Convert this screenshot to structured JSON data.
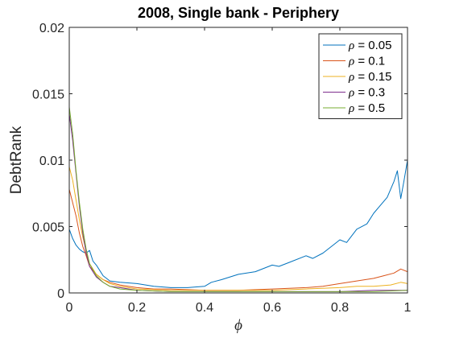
{
  "chart_data": {
    "type": "line",
    "title": "2008, Single bank - Periphery",
    "xlabel": "ϕ",
    "ylabel": "DebtRank",
    "xlim": [
      0,
      1
    ],
    "ylim": [
      0,
      0.02
    ],
    "xticks": [
      0,
      0.2,
      0.4,
      0.6,
      0.8,
      1
    ],
    "xtick_labels": [
      "0",
      "0.2",
      "0.4",
      "0.6",
      "0.8",
      "1"
    ],
    "yticks": [
      0,
      0.005,
      0.01,
      0.015,
      0.02
    ],
    "ytick_labels": [
      "0",
      "0.005",
      "0.01",
      "0.015",
      "0.02"
    ],
    "grid": false,
    "legend_position": "top-right",
    "series": [
      {
        "name": "ρ = 0.05",
        "legend_symbol": "ρ",
        "legend_value": " = 0.05",
        "color": "#0072BD",
        "x": [
          0,
          0.01,
          0.02,
          0.03,
          0.04,
          0.05,
          0.06,
          0.07,
          0.08,
          0.1,
          0.12,
          0.15,
          0.2,
          0.25,
          0.3,
          0.35,
          0.4,
          0.42,
          0.45,
          0.5,
          0.55,
          0.6,
          0.62,
          0.65,
          0.7,
          0.72,
          0.75,
          0.78,
          0.8,
          0.82,
          0.85,
          0.88,
          0.9,
          0.92,
          0.94,
          0.96,
          0.97,
          0.98,
          0.99,
          1.0
        ],
        "y": [
          0.0048,
          0.0041,
          0.0036,
          0.0033,
          0.0031,
          0.003,
          0.0032,
          0.0024,
          0.0021,
          0.0013,
          0.0009,
          0.0008,
          0.0007,
          0.0005,
          0.0004,
          0.0004,
          0.0005,
          0.0008,
          0.001,
          0.0014,
          0.0016,
          0.0021,
          0.002,
          0.0023,
          0.0028,
          0.0026,
          0.003,
          0.0036,
          0.004,
          0.0038,
          0.0048,
          0.0052,
          0.006,
          0.0066,
          0.0072,
          0.0084,
          0.0092,
          0.0071,
          0.0085,
          0.01
        ]
      },
      {
        "name": "ρ = 0.1",
        "legend_symbol": "ρ",
        "legend_value": " = 0.1",
        "color": "#D95319",
        "x": [
          0,
          0.01,
          0.02,
          0.03,
          0.04,
          0.05,
          0.06,
          0.08,
          0.1,
          0.12,
          0.15,
          0.2,
          0.25,
          0.3,
          0.4,
          0.5,
          0.6,
          0.7,
          0.75,
          0.8,
          0.85,
          0.9,
          0.93,
          0.96,
          0.98,
          1.0
        ],
        "y": [
          0.0078,
          0.0068,
          0.0058,
          0.0045,
          0.0035,
          0.0028,
          0.002,
          0.0014,
          0.001,
          0.0008,
          0.0006,
          0.0004,
          0.0003,
          0.0003,
          0.0002,
          0.0002,
          0.0003,
          0.0004,
          0.0005,
          0.0007,
          0.0009,
          0.0011,
          0.0013,
          0.0015,
          0.0018,
          0.0016
        ]
      },
      {
        "name": "ρ = 0.15",
        "legend_symbol": "ρ",
        "legend_value": " = 0.15",
        "color": "#EDB120",
        "x": [
          0,
          0.01,
          0.02,
          0.03,
          0.04,
          0.05,
          0.06,
          0.08,
          0.1,
          0.12,
          0.15,
          0.2,
          0.3,
          0.4,
          0.5,
          0.6,
          0.7,
          0.8,
          0.85,
          0.9,
          0.95,
          0.98,
          1.0
        ],
        "y": [
          0.0095,
          0.0085,
          0.007,
          0.0055,
          0.0042,
          0.0032,
          0.0022,
          0.0014,
          0.001,
          0.0007,
          0.0005,
          0.0003,
          0.0002,
          0.0002,
          0.0002,
          0.0002,
          0.0003,
          0.0004,
          0.0005,
          0.0005,
          0.0006,
          0.0008,
          0.0007
        ]
      },
      {
        "name": "ρ = 0.3",
        "legend_symbol": "ρ",
        "legend_value": " = 0.3",
        "color": "#7E2F8E",
        "x": [
          0,
          0.01,
          0.02,
          0.03,
          0.04,
          0.05,
          0.06,
          0.08,
          0.1,
          0.12,
          0.15,
          0.2,
          0.3,
          0.4,
          0.5,
          0.6,
          0.7,
          0.8,
          0.9,
          1.0
        ],
        "y": [
          0.0135,
          0.0115,
          0.009,
          0.0065,
          0.0045,
          0.003,
          0.002,
          0.0012,
          0.0008,
          0.0005,
          0.0004,
          0.0002,
          0.0001,
          0.0001,
          0.0001,
          0.0001,
          0.0001,
          0.0001,
          0.0002,
          0.0002
        ]
      },
      {
        "name": "ρ = 0.5",
        "legend_symbol": "ρ",
        "legend_value": " = 0.5",
        "color": "#77AC30",
        "x": [
          0,
          0.01,
          0.02,
          0.03,
          0.04,
          0.05,
          0.06,
          0.08,
          0.1,
          0.12,
          0.15,
          0.2,
          0.3,
          0.4,
          0.5,
          0.6,
          0.7,
          0.8,
          0.9,
          1.0
        ],
        "y": [
          0.014,
          0.012,
          0.0092,
          0.0068,
          0.0048,
          0.0033,
          0.0022,
          0.0013,
          0.0008,
          0.0005,
          0.0003,
          0.0002,
          0.0001,
          0.0001,
          0.0001,
          0.0001,
          0.0001,
          0.0001,
          0.0001,
          0.0002
        ]
      }
    ]
  }
}
